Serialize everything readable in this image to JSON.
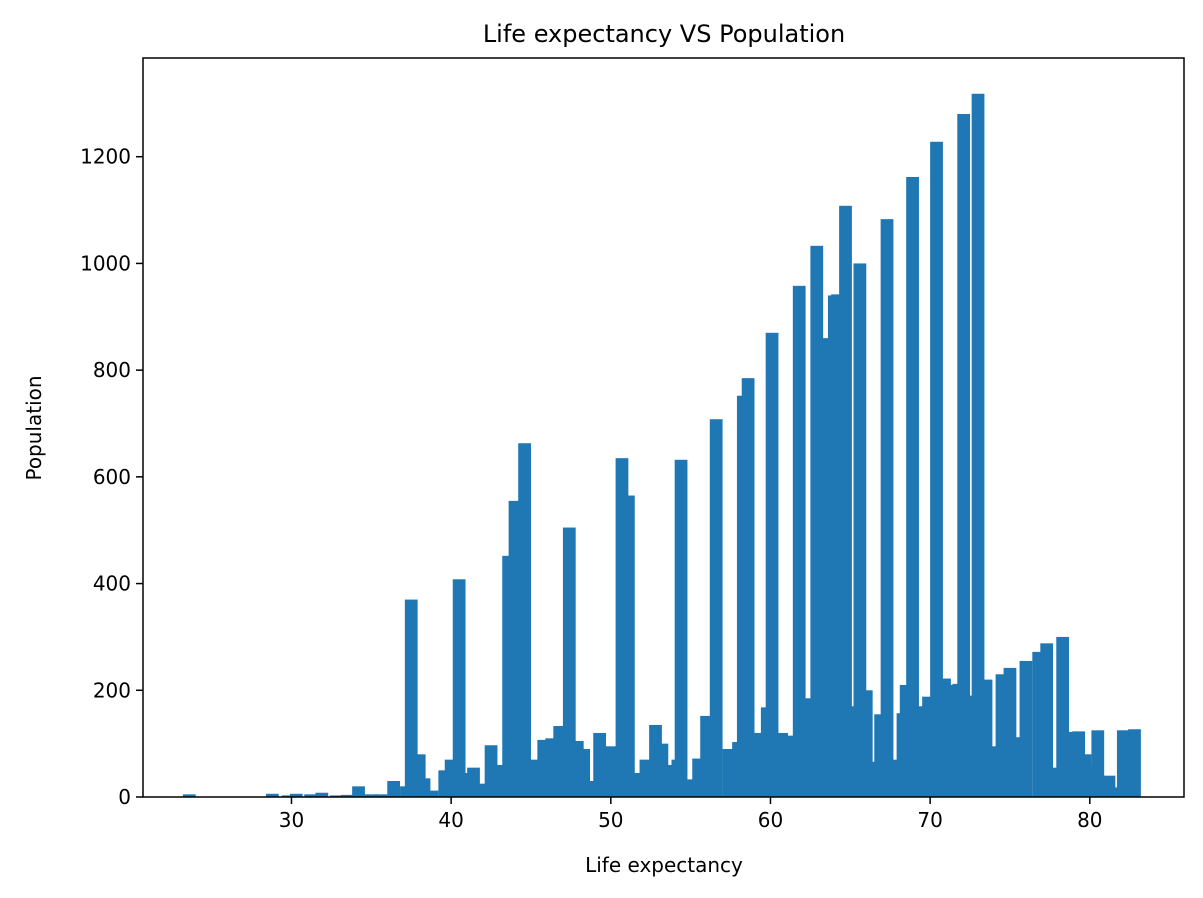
{
  "chart_data": {
    "type": "bar",
    "title": "Life expectancy VS Population",
    "xlabel": "Life expectancy",
    "ylabel": "Population",
    "xlim": [
      20.7,
      85.9
    ],
    "ylim": [
      0,
      1385
    ],
    "xticks": [
      30,
      40,
      50,
      60,
      70,
      80
    ],
    "yticks": [
      0,
      200,
      400,
      600,
      800,
      1000,
      1200
    ],
    "grid": false,
    "legend": "none",
    "bar_width": 0.8,
    "bar_color": "#1f77b4",
    "series": [
      {
        "values": [
          [
            23.6,
            5
          ],
          [
            28.8,
            6
          ],
          [
            29.8,
            3
          ],
          [
            30.3,
            6
          ],
          [
            31.2,
            5
          ],
          [
            31.9,
            8
          ],
          [
            32.8,
            3
          ],
          [
            33.5,
            4
          ],
          [
            34.2,
            20
          ],
          [
            35.0,
            5
          ],
          [
            35.6,
            5
          ],
          [
            36.4,
            30
          ],
          [
            37.2,
            20
          ],
          [
            37.5,
            370
          ],
          [
            38.0,
            80
          ],
          [
            38.3,
            35
          ],
          [
            38.8,
            12
          ],
          [
            39.6,
            50
          ],
          [
            40.0,
            70
          ],
          [
            40.5,
            408
          ],
          [
            41.0,
            45
          ],
          [
            41.4,
            55
          ],
          [
            41.9,
            25
          ],
          [
            42.5,
            97
          ],
          [
            43.2,
            60
          ],
          [
            43.6,
            452
          ],
          [
            44.0,
            555
          ],
          [
            44.6,
            663
          ],
          [
            45.2,
            70
          ],
          [
            45.8,
            107
          ],
          [
            46.3,
            110
          ],
          [
            46.8,
            133
          ],
          [
            47.4,
            505
          ],
          [
            47.9,
            105
          ],
          [
            48.3,
            90
          ],
          [
            48.9,
            30
          ],
          [
            49.3,
            120
          ],
          [
            50.0,
            95
          ],
          [
            50.7,
            635
          ],
          [
            51.1,
            565
          ],
          [
            51.5,
            45
          ],
          [
            52.2,
            70
          ],
          [
            52.8,
            135
          ],
          [
            53.2,
            100
          ],
          [
            53.7,
            60
          ],
          [
            54.2,
            70
          ],
          [
            54.4,
            632
          ],
          [
            55.0,
            33
          ],
          [
            55.5,
            72
          ],
          [
            56.0,
            152
          ],
          [
            56.6,
            708
          ],
          [
            57.4,
            90
          ],
          [
            58.0,
            103
          ],
          [
            58.3,
            752
          ],
          [
            58.6,
            785
          ],
          [
            59.3,
            120
          ],
          [
            59.8,
            168
          ],
          [
            60.1,
            870
          ],
          [
            60.7,
            120
          ],
          [
            61.2,
            115
          ],
          [
            61.8,
            958
          ],
          [
            62.3,
            135
          ],
          [
            62.5,
            185
          ],
          [
            62.9,
            1033
          ],
          [
            63.4,
            860
          ],
          [
            63.6,
            150
          ],
          [
            64.0,
            940
          ],
          [
            64.2,
            942
          ],
          [
            64.7,
            1108
          ],
          [
            65.1,
            170
          ],
          [
            65.6,
            1000
          ],
          [
            66.0,
            200
          ],
          [
            66.6,
            66
          ],
          [
            66.9,
            155
          ],
          [
            67.3,
            1083
          ],
          [
            67.8,
            70
          ],
          [
            68.3,
            157
          ],
          [
            68.5,
            210
          ],
          [
            68.9,
            1162
          ],
          [
            69.4,
            170
          ],
          [
            69.9,
            188
          ],
          [
            70.4,
            1228
          ],
          [
            70.9,
            222
          ],
          [
            71.3,
            210
          ],
          [
            71.8,
            212
          ],
          [
            72.1,
            1280
          ],
          [
            72.6,
            190
          ],
          [
            73.0,
            1318
          ],
          [
            73.5,
            220
          ],
          [
            74.0,
            95
          ],
          [
            74.2,
            85
          ],
          [
            74.5,
            230
          ],
          [
            75.0,
            242
          ],
          [
            75.6,
            112
          ],
          [
            76.0,
            255
          ],
          [
            76.8,
            272
          ],
          [
            77.3,
            288
          ],
          [
            78.0,
            55
          ],
          [
            78.3,
            300
          ],
          [
            78.7,
            122
          ],
          [
            79.3,
            123
          ],
          [
            79.7,
            80
          ],
          [
            80.0,
            60
          ],
          [
            80.5,
            125
          ],
          [
            81.2,
            40
          ],
          [
            81.6,
            18
          ],
          [
            82.1,
            125
          ],
          [
            82.8,
            127
          ]
        ]
      }
    ]
  }
}
